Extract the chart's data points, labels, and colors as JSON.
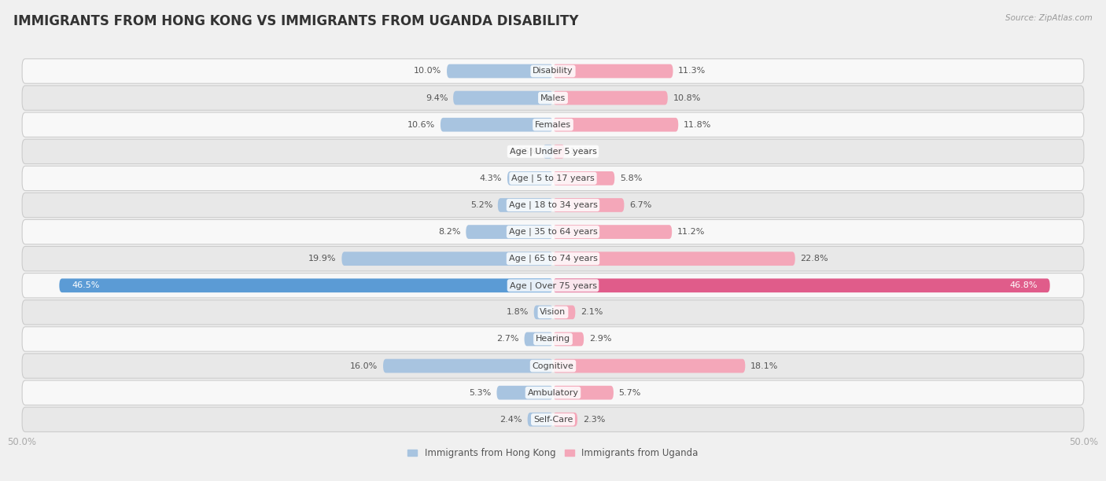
{
  "title": "IMMIGRANTS FROM HONG KONG VS IMMIGRANTS FROM UGANDA DISABILITY",
  "source": "Source: ZipAtlas.com",
  "categories": [
    "Disability",
    "Males",
    "Females",
    "Age | Under 5 years",
    "Age | 5 to 17 years",
    "Age | 18 to 34 years",
    "Age | 35 to 64 years",
    "Age | 65 to 74 years",
    "Age | Over 75 years",
    "Vision",
    "Hearing",
    "Cognitive",
    "Ambulatory",
    "Self-Care"
  ],
  "hk_values": [
    10.0,
    9.4,
    10.6,
    0.95,
    4.3,
    5.2,
    8.2,
    19.9,
    46.5,
    1.8,
    2.7,
    16.0,
    5.3,
    2.4
  ],
  "ug_values": [
    11.3,
    10.8,
    11.8,
    1.1,
    5.8,
    6.7,
    11.2,
    22.8,
    46.8,
    2.1,
    2.9,
    18.1,
    5.7,
    2.3
  ],
  "hk_colors": [
    "#a8c4e0",
    "#a8c4e0",
    "#a8c4e0",
    "#a8c4e0",
    "#a8c4e0",
    "#a8c4e0",
    "#a8c4e0",
    "#a8c4e0",
    "#5b9bd5",
    "#a8c4e0",
    "#a8c4e0",
    "#a8c4e0",
    "#a8c4e0",
    "#a8c4e0"
  ],
  "ug_colors": [
    "#f4a7b9",
    "#f4a7b9",
    "#f4a7b9",
    "#f4a7b9",
    "#f4a7b9",
    "#f4a7b9",
    "#f4a7b9",
    "#f4a7b9",
    "#e05c8a",
    "#f4a7b9",
    "#f4a7b9",
    "#f4a7b9",
    "#f4a7b9",
    "#f4a7b9"
  ],
  "hk_label": "Immigrants from Hong Kong",
  "ug_label": "Immigrants from Uganda",
  "bar_height": 0.52,
  "max_val": 50.0,
  "bg_color": "#f0f0f0",
  "row_color_light": "#f8f8f8",
  "row_color_dark": "#e8e8e8",
  "title_fontsize": 12,
  "label_fontsize": 8,
  "tick_fontsize": 8.5,
  "source_fontsize": 7.5,
  "value_label_color_dark": "#ffffff",
  "value_label_color_light": "#666666"
}
